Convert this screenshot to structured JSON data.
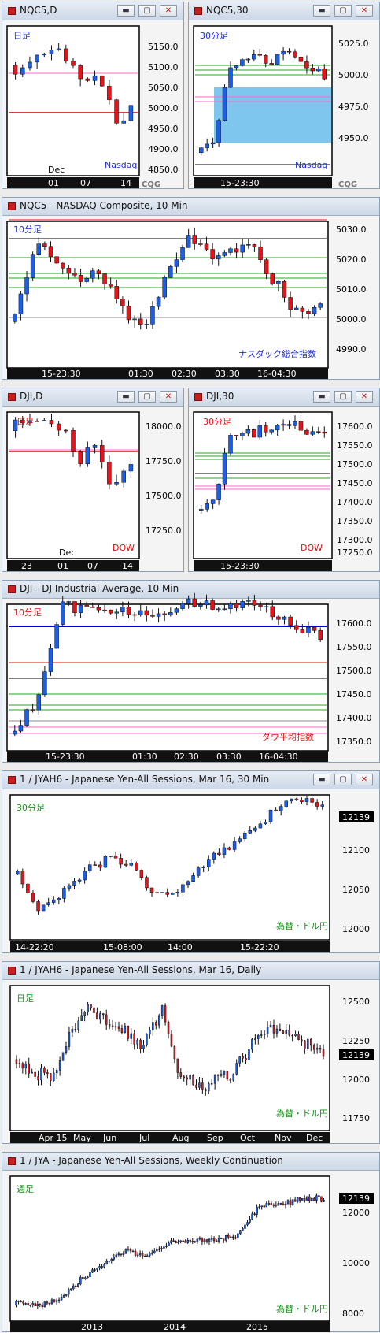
{
  "windows": [
    {
      "id": "w1",
      "title": "NQC5,D",
      "label": "日足",
      "series_label": "Nasdaq",
      "chart_data": {
        "type": "candlestick",
        "yticks": [
          "5150.0",
          "5100.0",
          "5050.0",
          "5000.0",
          "4950.0",
          "4900.0",
          "4850.0"
        ],
        "xticks": [
          "01",
          "07",
          "14"
        ],
        "month_label": "Dec",
        "ylim": [
          4840,
          5200
        ]
      }
    },
    {
      "id": "w2",
      "title": "NQC5,30",
      "label": "30分足",
      "series_label": "Nasdaq",
      "chart_data": {
        "type": "candlestick",
        "yticks": [
          "5025.0",
          "5000.0",
          "4975.0",
          "4950.0"
        ],
        "xticks": [
          "15-23:30"
        ],
        "ylim": [
          4920,
          5040
        ]
      }
    },
    {
      "id": "w3",
      "title": "NQC5 - NASDAQ Composite, 10 Min",
      "label": "10分足",
      "series_label": "ナスダック総合指数",
      "chart_data": {
        "type": "candlestick",
        "yticks": [
          "5030.0",
          "5020.0",
          "5010.0",
          "5000.0",
          "4990.0"
        ],
        "xticks": [
          "15-23:30",
          "01:30",
          "02:30",
          "03:30",
          "16-04:30"
        ],
        "ylim": [
          4985,
          5033
        ]
      }
    },
    {
      "id": "w4",
      "title": "DJI,D",
      "label": "日足",
      "series_label": "DOW",
      "chart_data": {
        "type": "candlestick",
        "yticks": [
          "18000.0",
          "17750.0",
          "17500.0",
          "17250.0"
        ],
        "xticks": [
          "23",
          "01",
          "07",
          "14"
        ],
        "month_label": "Dec",
        "ylim": [
          17100,
          18080
        ]
      }
    },
    {
      "id": "w5",
      "title": "DJI,30",
      "label": "30分足",
      "series_label": "DOW",
      "chart_data": {
        "type": "candlestick",
        "yticks": [
          "17600.0",
          "17550.0",
          "17500.0",
          "17450.0",
          "17400.0",
          "17350.0",
          "17300.0",
          "17250.0"
        ],
        "xticks": [
          "15-23:30"
        ],
        "ylim": [
          17230,
          17660
        ]
      }
    },
    {
      "id": "w6",
      "title": "DJI - DJ Industrial Average, 10 Min",
      "label": "10分足",
      "series_label": "ダウ平均指数",
      "chart_data": {
        "type": "candlestick",
        "yticks": [
          "17600.0",
          "17550.0",
          "17500.0",
          "17450.0",
          "17400.0",
          "17350.0"
        ],
        "xticks": [
          "15-23:30",
          "01:30",
          "02:30",
          "03:30",
          "16-04:30"
        ],
        "ylim": [
          17310,
          17630
        ]
      }
    },
    {
      "id": "w7",
      "title": "1 / JYAH6 - Japanese Yen-All Sessions, Mar 16, 30 Min",
      "label": "30分足",
      "series_label": "為替・ドル円",
      "last_price": "12139",
      "chart_data": {
        "type": "candlestick",
        "yticks": [
          "12100",
          "12050",
          "12000"
        ],
        "xticks": [
          "14-22:20",
          "15-08:00",
          "14:00",
          "15-22:20"
        ],
        "ylim": [
          11990,
          12155
        ]
      }
    },
    {
      "id": "w8",
      "title": "1 / JYAH6 - Japanese Yen-All Sessions, Mar 16, Daily",
      "label": "日足",
      "series_label": "為替・ドル円",
      "last_price": "12139",
      "chart_data": {
        "type": "candlestick",
        "yticks": [
          "12500",
          "12250",
          "12000",
          "11750"
        ],
        "xticks": [
          "Apr 15",
          "May",
          "Jun",
          "Jul",
          "Aug",
          "Sep",
          "Oct",
          "Nov",
          "Dec"
        ],
        "ylim": [
          11620,
          12560
        ]
      }
    },
    {
      "id": "w9",
      "title": "1 / JYA - Japanese Yen-All Sessions, Weekly Continuation",
      "label": "週足",
      "series_label": "為替・ドル円",
      "last_price": "12139",
      "chart_data": {
        "type": "candlestick",
        "yticks": [
          "12000",
          "10000",
          "8000"
        ],
        "xticks": [
          "2013",
          "2014",
          "2015"
        ],
        "ylim": [
          7600,
          12700
        ]
      }
    }
  ],
  "brand": "CQG",
  "buttons": {
    "minimize": "▬",
    "restore": "▢",
    "close": "✕"
  }
}
